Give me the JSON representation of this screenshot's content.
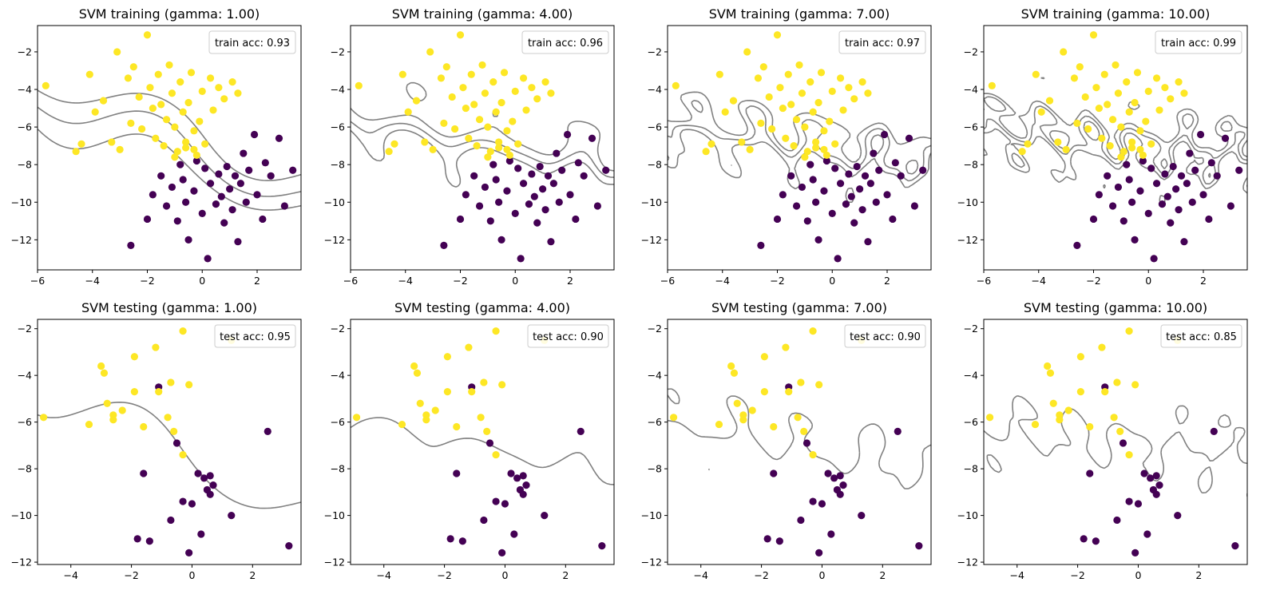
{
  "colors": {
    "class0": "#440154",
    "class1": "#fde725",
    "boundary": "#808080"
  },
  "chart_data": [
    {
      "type": "scatter",
      "title": "SVM training (gamma: 1.00)",
      "legend": "train acc: 0.93",
      "legend_placement": "top-right",
      "xlim": [
        -6,
        3.6
      ],
      "ylim": [
        -13.6,
        -0.6
      ],
      "xticks": [
        -6,
        -4,
        -2,
        0,
        2
      ],
      "yticks": [
        -2,
        -4,
        -6,
        -8,
        -10,
        -12
      ],
      "dataset": "train",
      "margins": true,
      "boundary_level": "g1",
      "grid": false
    },
    {
      "type": "scatter",
      "title": "SVM training (gamma: 4.00)",
      "legend": "train acc: 0.96",
      "legend_placement": "top-right",
      "xlim": [
        -6,
        3.6
      ],
      "ylim": [
        -13.6,
        -0.6
      ],
      "xticks": [
        -6,
        -4,
        -2,
        0,
        2
      ],
      "yticks": [
        -2,
        -4,
        -6,
        -8,
        -10,
        -12
      ],
      "dataset": "train",
      "margins": true,
      "boundary_level": "g4",
      "grid": false
    },
    {
      "type": "scatter",
      "title": "SVM training (gamma: 7.00)",
      "legend": "train acc: 0.97",
      "legend_placement": "top-right",
      "xlim": [
        -6,
        3.6
      ],
      "ylim": [
        -13.6,
        -0.6
      ],
      "xticks": [
        -6,
        -4,
        -2,
        0,
        2
      ],
      "yticks": [
        -2,
        -4,
        -6,
        -8,
        -10,
        -12
      ],
      "dataset": "train",
      "margins": true,
      "boundary_level": "g7",
      "grid": false
    },
    {
      "type": "scatter",
      "title": "SVM training (gamma: 10.00)",
      "legend": "train acc: 0.99",
      "legend_placement": "top-right",
      "xlim": [
        -6,
        3.6
      ],
      "ylim": [
        -13.6,
        -0.6
      ],
      "xticks": [
        -6,
        -4,
        -2,
        0,
        2
      ],
      "yticks": [
        -2,
        -4,
        -6,
        -8,
        -10,
        -12
      ],
      "dataset": "train",
      "margins": true,
      "boundary_level": "g10",
      "grid": false
    },
    {
      "type": "scatter",
      "title": "SVM testing (gamma: 1.00)",
      "legend": "test acc: 0.95",
      "legend_placement": "top-right",
      "xlim": [
        -5.1,
        3.6
      ],
      "ylim": [
        -12.1,
        -1.6
      ],
      "xticks": [
        -4,
        -2,
        0,
        2
      ],
      "yticks": [
        -2,
        -4,
        -6,
        -8,
        -10,
        -12
      ],
      "dataset": "test",
      "margins": false,
      "boundary_level": "g1",
      "grid": false
    },
    {
      "type": "scatter",
      "title": "SVM testing (gamma: 4.00)",
      "legend": "test acc: 0.90",
      "legend_placement": "top-right",
      "xlim": [
        -5.1,
        3.6
      ],
      "ylim": [
        -12.1,
        -1.6
      ],
      "xticks": [
        -4,
        -2,
        0,
        2
      ],
      "yticks": [
        -2,
        -4,
        -6,
        -8,
        -10,
        -12
      ],
      "dataset": "test",
      "margins": false,
      "boundary_level": "g4",
      "grid": false
    },
    {
      "type": "scatter",
      "title": "SVM testing (gamma: 7.00)",
      "legend": "test acc: 0.90",
      "legend_placement": "top-right",
      "xlim": [
        -5.1,
        3.6
      ],
      "ylim": [
        -12.1,
        -1.6
      ],
      "xticks": [
        -4,
        -2,
        0,
        2
      ],
      "yticks": [
        -2,
        -4,
        -6,
        -8,
        -10,
        -12
      ],
      "dataset": "test",
      "margins": false,
      "boundary_level": "g7",
      "grid": false
    },
    {
      "type": "scatter",
      "title": "SVM testing (gamma: 10.00)",
      "legend": "test acc: 0.85",
      "legend_placement": "top-right",
      "xlim": [
        -5.1,
        3.6
      ],
      "ylim": [
        -12.1,
        -1.6
      ],
      "xticks": [
        -4,
        -2,
        0,
        2
      ],
      "yticks": [
        -2,
        -4,
        -6,
        -8,
        -10,
        -12
      ],
      "dataset": "test",
      "margins": false,
      "boundary_level": "g10",
      "grid": false
    }
  ],
  "datasets": {
    "train": {
      "class1": [
        [
          -5.7,
          -3.8
        ],
        [
          -4.6,
          -7.3
        ],
        [
          -4.4,
          -6.9
        ],
        [
          -4.1,
          -3.2
        ],
        [
          -3.9,
          -5.2
        ],
        [
          -3.6,
          -4.6
        ],
        [
          -3.3,
          -6.8
        ],
        [
          -3.1,
          -2.0
        ],
        [
          -3.0,
          -7.2
        ],
        [
          -2.7,
          -3.4
        ],
        [
          -2.6,
          -5.8
        ],
        [
          -2.5,
          -2.8
        ],
        [
          -2.3,
          -4.4
        ],
        [
          -2.2,
          -6.1
        ],
        [
          -2.0,
          -1.1
        ],
        [
          -1.9,
          -3.9
        ],
        [
          -1.8,
          -5.0
        ],
        [
          -1.7,
          -6.6
        ],
        [
          -1.6,
          -3.2
        ],
        [
          -1.5,
          -4.8
        ],
        [
          -1.4,
          -7.0
        ],
        [
          -1.3,
          -5.6
        ],
        [
          -1.2,
          -2.7
        ],
        [
          -1.1,
          -4.2
        ],
        [
          -1.0,
          -6.0
        ],
        [
          -0.9,
          -7.3
        ],
        [
          -0.8,
          -3.6
        ],
        [
          -0.7,
          -5.2
        ],
        [
          -0.6,
          -6.8
        ],
        [
          -0.5,
          -4.7
        ],
        [
          -0.4,
          -3.1
        ],
        [
          -0.3,
          -6.2
        ],
        [
          -0.2,
          -7.5
        ],
        [
          -0.1,
          -5.7
        ],
        [
          0.0,
          -4.1
        ],
        [
          0.1,
          -6.9
        ],
        [
          0.3,
          -3.4
        ],
        [
          0.4,
          -5.1
        ],
        [
          0.6,
          -3.9
        ],
        [
          0.8,
          -4.5
        ],
        [
          1.1,
          -3.6
        ],
        [
          1.3,
          -4.2
        ],
        [
          -0.6,
          -7.1
        ],
        [
          -1.0,
          -7.6
        ],
        [
          -0.3,
          -7.2
        ]
      ],
      "class0": [
        [
          -2.6,
          -12.3
        ],
        [
          -2.0,
          -10.9
        ],
        [
          -1.8,
          -9.6
        ],
        [
          -1.5,
          -8.6
        ],
        [
          -1.3,
          -10.2
        ],
        [
          -1.1,
          -9.2
        ],
        [
          -0.9,
          -11.0
        ],
        [
          -0.7,
          -8.8
        ],
        [
          -0.6,
          -10.0
        ],
        [
          -0.5,
          -12.0
        ],
        [
          -0.3,
          -9.4
        ],
        [
          -0.2,
          -7.8
        ],
        [
          0.0,
          -10.6
        ],
        [
          0.1,
          -8.2
        ],
        [
          0.2,
          -13.0
        ],
        [
          0.3,
          -9.0
        ],
        [
          0.5,
          -10.1
        ],
        [
          0.6,
          -8.5
        ],
        [
          0.7,
          -9.7
        ],
        [
          0.8,
          -11.1
        ],
        [
          0.9,
          -8.1
        ],
        [
          1.0,
          -9.3
        ],
        [
          1.1,
          -10.4
        ],
        [
          1.2,
          -8.6
        ],
        [
          1.3,
          -12.1
        ],
        [
          1.4,
          -9.0
        ],
        [
          1.5,
          -7.4
        ],
        [
          1.6,
          -10.0
        ],
        [
          1.7,
          -8.3
        ],
        [
          1.9,
          -6.4
        ],
        [
          2.0,
          -9.6
        ],
        [
          2.2,
          -10.9
        ],
        [
          2.5,
          -8.6
        ],
        [
          2.8,
          -6.6
        ],
        [
          3.0,
          -10.2
        ],
        [
          3.3,
          -8.3
        ],
        [
          2.3,
          -7.9
        ],
        [
          -0.8,
          -8.0
        ]
      ]
    },
    "test": {
      "class1": [
        [
          -4.9,
          -5.8
        ],
        [
          -3.4,
          -6.1
        ],
        [
          -3.0,
          -3.6
        ],
        [
          -2.9,
          -3.9
        ],
        [
          -2.8,
          -5.2
        ],
        [
          -2.6,
          -5.7
        ],
        [
          -2.6,
          -5.9
        ],
        [
          -2.3,
          -5.5
        ],
        [
          -1.9,
          -3.2
        ],
        [
          -1.9,
          -4.7
        ],
        [
          -1.6,
          -6.2
        ],
        [
          -1.2,
          -2.8
        ],
        [
          -1.1,
          -4.7
        ],
        [
          -0.8,
          -5.8
        ],
        [
          -0.7,
          -4.3
        ],
        [
          -0.6,
          -6.4
        ],
        [
          -0.3,
          -7.4
        ],
        [
          -0.3,
          -2.1
        ],
        [
          -0.1,
          -4.4
        ],
        [
          1.3,
          -2.5
        ]
      ],
      "class0": [
        [
          -1.8,
          -11.0
        ],
        [
          -1.4,
          -11.1
        ],
        [
          -1.6,
          -8.2
        ],
        [
          -1.1,
          -4.5
        ],
        [
          -0.7,
          -10.2
        ],
        [
          -0.5,
          -6.9
        ],
        [
          -0.3,
          -9.4
        ],
        [
          -0.1,
          -11.6
        ],
        [
          0.0,
          -9.5
        ],
        [
          0.2,
          -8.2
        ],
        [
          0.3,
          -10.8
        ],
        [
          0.4,
          -8.4
        ],
        [
          0.5,
          -8.9
        ],
        [
          0.6,
          -8.3
        ],
        [
          0.6,
          -9.1
        ],
        [
          0.7,
          -8.7
        ],
        [
          1.3,
          -10.0
        ],
        [
          2.5,
          -6.4
        ],
        [
          3.2,
          -11.3
        ]
      ]
    }
  }
}
